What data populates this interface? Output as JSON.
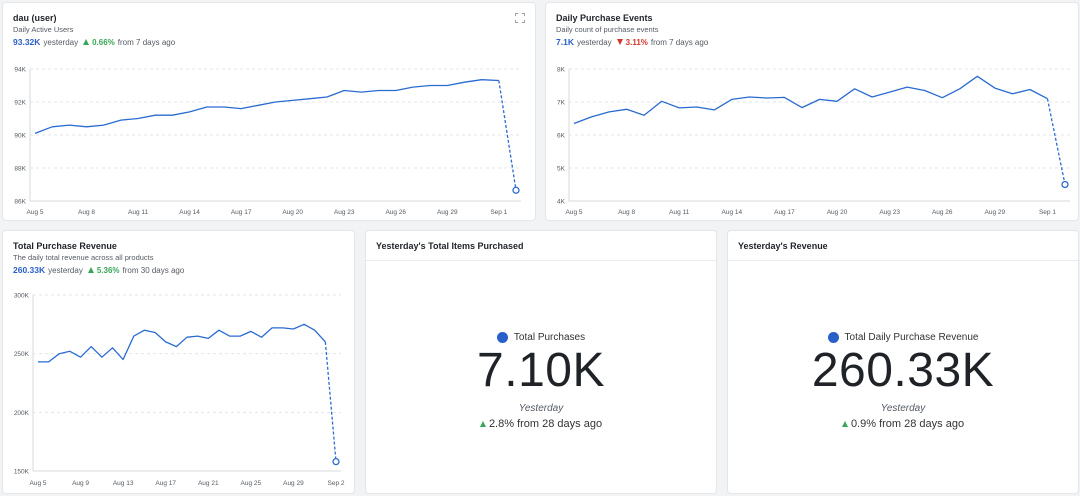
{
  "dau": {
    "title": "dau (user)",
    "subtitle": "Daily Active Users",
    "value": "93.32K",
    "value_suffix": "yesterday",
    "change": "0.66%",
    "change_suffix": "from 7 days ago",
    "expand_icon": "expand-icon"
  },
  "purchase_events": {
    "title": "Daily Purchase Events",
    "subtitle": "Daily count of purchase events",
    "value": "7.1K",
    "value_suffix": "yesterday",
    "change": "3.11%",
    "change_suffix": "from 7 days ago"
  },
  "revenue": {
    "title": "Total Purchase Revenue",
    "subtitle": "The daily total revenue across all products",
    "value": "260.33K",
    "value_suffix": "yesterday",
    "change": "5.36%",
    "change_suffix": "from 30 days ago"
  },
  "items_kpi": {
    "title": "Yesterday's Total Items Purchased",
    "label": "Total Purchases",
    "value": "7.10K",
    "period": "Yesterday",
    "change": "2.8% from 28 days ago"
  },
  "revenue_kpi": {
    "title": "Yesterday's Revenue",
    "label": "Total Daily Purchase Revenue",
    "value": "260.33K",
    "period": "Yesterday",
    "change": "0.9% from 28 days ago"
  },
  "colors": {
    "line": "#2a6bd1",
    "up": "#3aa657",
    "down": "#d6342c",
    "dot": "#2a5fc9"
  },
  "chart_data": [
    {
      "type": "line",
      "id": "dau-chart",
      "ylim": [
        86000,
        94000
      ],
      "y_ticks": [
        86000,
        88000,
        90000,
        92000,
        94000
      ],
      "y_tick_labels": [
        "86K",
        "88K",
        "90K",
        "92K",
        "94K"
      ],
      "x_tick_labels": [
        "Aug 5",
        "Aug 8",
        "Aug 11",
        "Aug 14",
        "Aug 17",
        "Aug 20",
        "Aug 23",
        "Aug 26",
        "Aug 29",
        "Sep 1"
      ],
      "x_tick_index": [
        0,
        3,
        6,
        9,
        12,
        15,
        18,
        21,
        24,
        27
      ],
      "values": [
        90100,
        90500,
        90600,
        90500,
        90600,
        90900,
        91000,
        91200,
        91200,
        91400,
        91700,
        91700,
        91600,
        91800,
        92000,
        92100,
        92200,
        92300,
        92700,
        92600,
        92700,
        92700,
        92900,
        93000,
        93000,
        93200,
        93350,
        93300,
        86650
      ],
      "partial_last": true
    },
    {
      "type": "line",
      "id": "events-chart",
      "ylim": [
        4000,
        8000
      ],
      "y_ticks": [
        4000,
        5000,
        6000,
        7000,
        8000
      ],
      "y_tick_labels": [
        "4K",
        "5K",
        "6K",
        "7K",
        "8K"
      ],
      "x_tick_labels": [
        "Aug 5",
        "Aug 8",
        "Aug 11",
        "Aug 14",
        "Aug 17",
        "Aug 20",
        "Aug 23",
        "Aug 26",
        "Aug 29",
        "Sep 1"
      ],
      "x_tick_index": [
        0,
        3,
        6,
        9,
        12,
        15,
        18,
        21,
        24,
        27
      ],
      "values": [
        6350,
        6550,
        6700,
        6780,
        6600,
        7020,
        6820,
        6850,
        6760,
        7080,
        7150,
        7120,
        7140,
        6830,
        7080,
        7020,
        7400,
        7150,
        7300,
        7450,
        7350,
        7130,
        7400,
        7780,
        7420,
        7250,
        7380,
        7100,
        4500
      ],
      "partial_last": true
    },
    {
      "type": "line",
      "id": "revenue-chart",
      "ylim": [
        150000,
        300000
      ],
      "y_ticks": [
        150000,
        200000,
        250000,
        300000
      ],
      "y_tick_labels": [
        "150K",
        "200K",
        "250K",
        "300K"
      ],
      "x_tick_labels": [
        "Aug 5",
        "Aug 9",
        "Aug 13",
        "Aug 17",
        "Aug 21",
        "Aug 25",
        "Aug 29",
        "Sep 2"
      ],
      "x_tick_index": [
        0,
        4,
        8,
        12,
        16,
        20,
        24,
        28
      ],
      "values": [
        243000,
        243000,
        250000,
        252000,
        247000,
        256000,
        247000,
        255000,
        245000,
        265000,
        270000,
        268000,
        260000,
        256000,
        264000,
        265000,
        263000,
        270000,
        265000,
        265000,
        269000,
        264000,
        272000,
        272000,
        271000,
        275000,
        270000,
        260000,
        158000
      ],
      "partial_last": true
    }
  ]
}
